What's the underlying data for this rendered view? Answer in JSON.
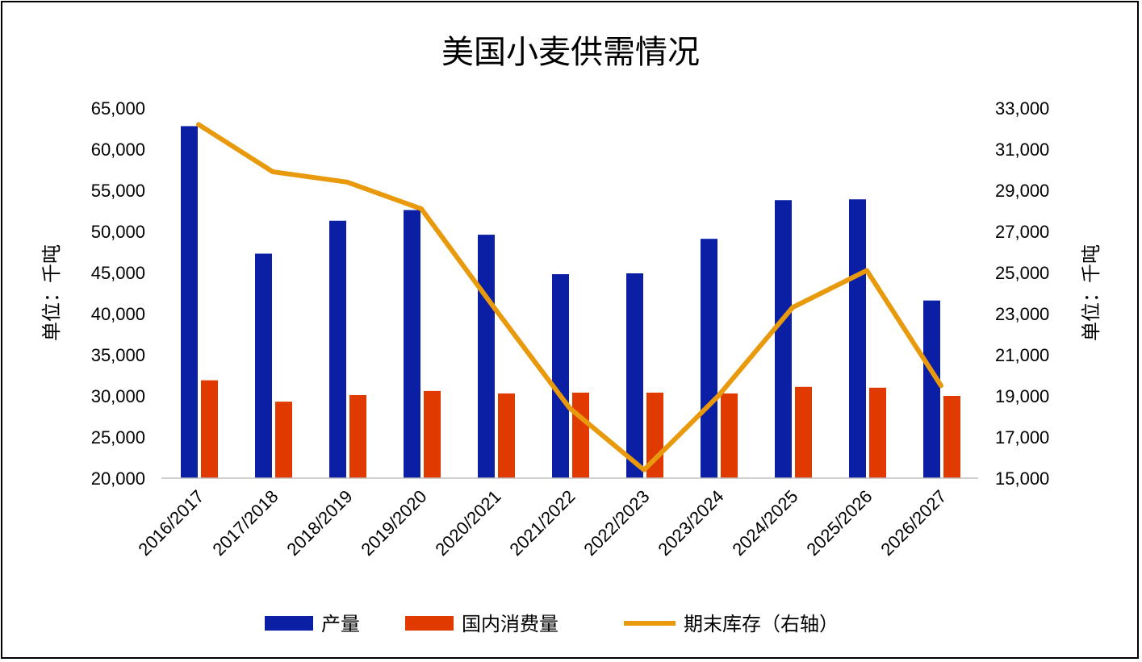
{
  "chart_data": {
    "type": "bar",
    "title": "美国小麦供需情况",
    "categories": [
      "2016/2017",
      "2017/2018",
      "2018/2019",
      "2019/2020",
      "2020/2021",
      "2021/2022",
      "2022/2023",
      "2023/2024",
      "2024/2025",
      "2025/2026",
      "2026/2027"
    ],
    "series": [
      {
        "name": "产量",
        "type": "bar",
        "axis": "left",
        "color": "#0a1fa3",
        "values": [
          62800,
          47300,
          51300,
          52600,
          49600,
          44800,
          44900,
          49100,
          53800,
          53900,
          41600
        ]
      },
      {
        "name": "国内消费量",
        "type": "bar",
        "axis": "left",
        "color": "#e03a00",
        "values": [
          31900,
          29300,
          30100,
          30600,
          30300,
          30400,
          30400,
          30300,
          31100,
          31000,
          30000
        ]
      },
      {
        "name": "期末库存（右轴）",
        "type": "line",
        "axis": "right",
        "color": "#e89a0c",
        "values": [
          32200,
          29900,
          29400,
          28100,
          23200,
          18400,
          15400,
          19000,
          23300,
          25100,
          19500
        ]
      }
    ],
    "ylabel_left": "单位：千吨",
    "ylabel_right": "单位：千吨",
    "ylim_left": [
      20000,
      65000
    ],
    "ylim_right": [
      15000,
      33000
    ],
    "yticks_left": [
      "20,000",
      "25,000",
      "30,000",
      "35,000",
      "40,000",
      "45,000",
      "50,000",
      "55,000",
      "60,000",
      "65,000"
    ],
    "yticks_right": [
      "15,000",
      "17,000",
      "19,000",
      "21,000",
      "23,000",
      "25,000",
      "27,000",
      "29,000",
      "31,000",
      "33,000"
    ],
    "grid": false,
    "legend": "bottom"
  }
}
